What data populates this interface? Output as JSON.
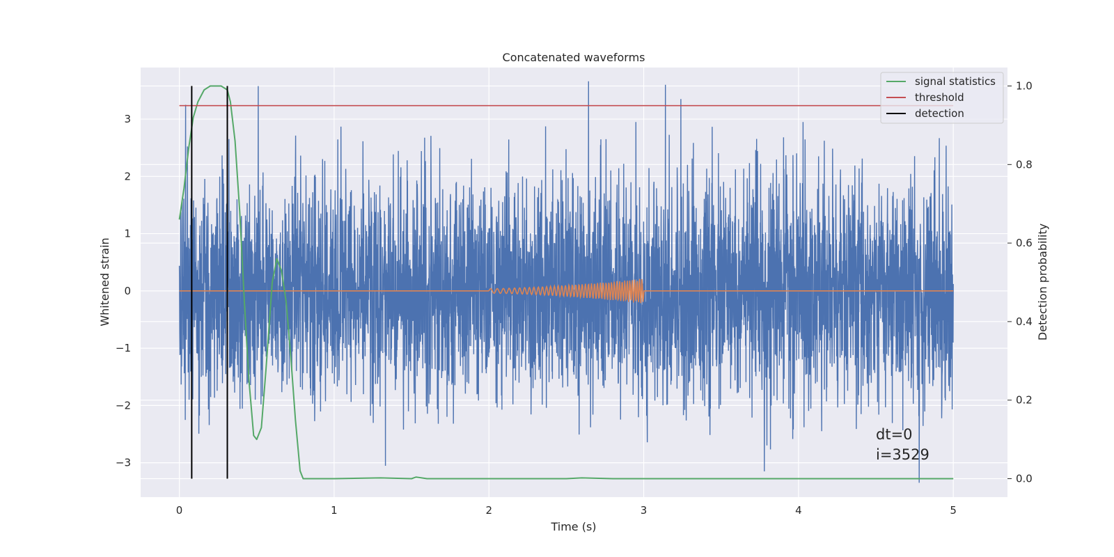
{
  "chart_data": {
    "type": "line",
    "title": "Concatenated waveforms",
    "xlabel": "Time (s)",
    "ylabel": "Whitened strain",
    "y2label": "Detection probability",
    "xlim": [
      -0.25,
      5.35
    ],
    "ylim": [
      -3.6,
      3.9
    ],
    "y2lim": [
      -0.047,
      1.047
    ],
    "xticks": [
      0,
      1,
      2,
      3,
      4,
      5
    ],
    "yticks": [
      -3,
      -2,
      -1,
      0,
      1,
      2,
      3
    ],
    "y2ticks": [
      0.0,
      0.2,
      0.4,
      0.6,
      0.8,
      1.0
    ],
    "xtick_labels": [
      "0",
      "1",
      "2",
      "3",
      "4",
      "5"
    ],
    "ytick_labels": [
      "−3",
      "−2",
      "−1",
      "0",
      "1",
      "2",
      "3"
    ],
    "y2tick_labels": [
      "0.0",
      "0.2",
      "0.4",
      "0.6",
      "0.8",
      "1.0"
    ],
    "grid": true,
    "legend_position": "top-right",
    "series": [
      {
        "name": "",
        "axis": "left",
        "color": "#4c72b0",
        "description_kind": "noise",
        "t_range": [
          0,
          5
        ],
        "typical_amplitude": 2.0,
        "peaks": [
          {
            "t": 0.04,
            "y": 3.25
          },
          {
            "t": 3.14,
            "y": 3.6
          },
          {
            "t": 3.24,
            "y": 3.35
          },
          {
            "t": 3.78,
            "y": -3.15
          },
          {
            "t": 4.78,
            "y": -3.35
          },
          {
            "t": 2.95,
            "y": 2.95
          },
          {
            "t": 4.03,
            "y": 2.95
          },
          {
            "t": 0.32,
            "y": 2.65
          }
        ]
      },
      {
        "name": "",
        "axis": "left",
        "color": "#dd8452",
        "description_kind": "chirp",
        "t_range": [
          0,
          5
        ],
        "chirp_start": 2.0,
        "chirp_end": 3.0,
        "chirp_max_amplitude": 0.22
      },
      {
        "name": "signal statistics",
        "axis": "right",
        "color": "#55a868",
        "points": [
          [
            0.0,
            0.66
          ],
          [
            0.03,
            0.74
          ],
          [
            0.06,
            0.84
          ],
          [
            0.09,
            0.92
          ],
          [
            0.12,
            0.96
          ],
          [
            0.16,
            0.99
          ],
          [
            0.2,
            1.0
          ],
          [
            0.27,
            1.0
          ],
          [
            0.31,
            0.99
          ],
          [
            0.33,
            0.96
          ],
          [
            0.36,
            0.86
          ],
          [
            0.39,
            0.68
          ],
          [
            0.42,
            0.45
          ],
          [
            0.45,
            0.25
          ],
          [
            0.48,
            0.11
          ],
          [
            0.5,
            0.1
          ],
          [
            0.53,
            0.13
          ],
          [
            0.56,
            0.28
          ],
          [
            0.6,
            0.5
          ],
          [
            0.63,
            0.56
          ],
          [
            0.66,
            0.53
          ],
          [
            0.69,
            0.45
          ],
          [
            0.72,
            0.31
          ],
          [
            0.75,
            0.15
          ],
          [
            0.78,
            0.02
          ],
          [
            0.8,
            0.0
          ],
          [
            1.0,
            0.0
          ],
          [
            1.3,
            0.002
          ],
          [
            1.5,
            0.0
          ],
          [
            1.53,
            0.004
          ],
          [
            1.6,
            0.0
          ],
          [
            2.0,
            0.0
          ],
          [
            2.5,
            0.0
          ],
          [
            2.6,
            0.002
          ],
          [
            2.8,
            0.0
          ],
          [
            5.0,
            0.0
          ]
        ]
      },
      {
        "name": "threshold",
        "axis": "right",
        "color": "#c44e52",
        "points": [
          [
            0.0,
            0.95
          ],
          [
            5.0,
            0.95
          ]
        ]
      },
      {
        "name": "detection",
        "axis": "right",
        "color": "#000000",
        "vlines": [
          0.08,
          0.31
        ],
        "vline_range": [
          0.0,
          1.0
        ]
      }
    ],
    "annotations": [
      {
        "text": "dt=0",
        "x": 4.5,
        "y": -2.5
      },
      {
        "text": "i=3529",
        "x": 4.5,
        "y": -2.85
      }
    ]
  }
}
